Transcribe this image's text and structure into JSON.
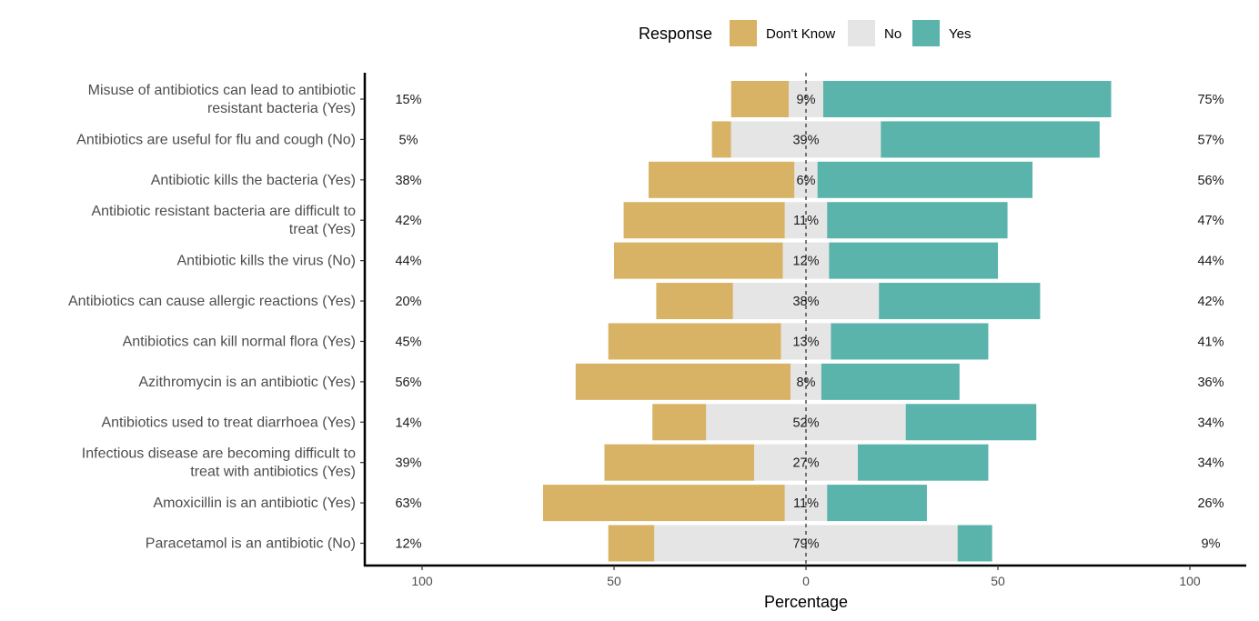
{
  "chart_data": {
    "type": "bar",
    "orientation": "horizontal",
    "stacking": "diverging",
    "xlabel": "Percentage",
    "xlim": [
      -100,
      100
    ],
    "x_ticks": [
      -100,
      -50,
      0,
      50,
      100
    ],
    "x_tick_labels": [
      "100",
      "50",
      "0",
      "50",
      "100"
    ],
    "grid": false,
    "legend": {
      "title": "Response",
      "position": "top",
      "entries": [
        "Don't Know",
        "No",
        "Yes"
      ]
    },
    "colors": {
      "Don't Know": "#d8b365",
      "No": "#e5e5e5",
      "Yes": "#5ab4ac"
    },
    "categories": [
      "Misuse of antibiotics can lead to antibiotic resistant bacteria (Yes)",
      "Antibiotics are useful for flu and cough (No)",
      "Antibiotic kills the bacteria (Yes)",
      "Antibiotic resistant bacteria are difficult to treat (Yes)",
      "Antibiotic kills the virus (No)",
      "Antibiotics can cause allergic reactions (Yes)",
      "Antibiotics can kill normal flora (Yes)",
      "Azithromycin is an antibiotic (Yes)",
      "Antibiotics used to treat diarrhoea (Yes)",
      "Infectious disease are becoming difficult to treat with antibiotics (Yes)",
      "Amoxicillin is an antibiotic (Yes)",
      "Paracetamol is an antibiotic (No)"
    ],
    "category_lines": [
      [
        "Misuse of antibiotics can lead to antibiotic",
        "resistant bacteria (Yes)"
      ],
      [
        "Antibiotics are useful for flu and cough (No)"
      ],
      [
        "Antibiotic kills the bacteria (Yes)"
      ],
      [
        "Antibiotic resistant bacteria are difficult to",
        "treat (Yes)"
      ],
      [
        "Antibiotic kills the virus (No)"
      ],
      [
        "Antibiotics can cause allergic reactions (Yes)"
      ],
      [
        "Antibiotics can kill normal flora (Yes)"
      ],
      [
        "Azithromycin is an antibiotic (Yes)"
      ],
      [
        "Antibiotics used to treat diarrhoea (Yes)"
      ],
      [
        "Infectious disease are becoming difficult to",
        "treat with antibiotics (Yes)"
      ],
      [
        "Amoxicillin is an antibiotic (Yes)"
      ],
      [
        "Paracetamol is an antibiotic (No)"
      ]
    ],
    "series": [
      {
        "name": "Don't Know",
        "values": [
          15,
          5,
          38,
          42,
          44,
          20,
          45,
          56,
          14,
          39,
          63,
          12
        ]
      },
      {
        "name": "No",
        "values": [
          9,
          39,
          6,
          11,
          12,
          38,
          13,
          8,
          52,
          27,
          11,
          79
        ]
      },
      {
        "name": "Yes",
        "values": [
          75,
          57,
          56,
          47,
          44,
          42,
          41,
          36,
          34,
          34,
          26,
          9
        ]
      }
    ],
    "left_labels": [
      "15%",
      "5%",
      "38%",
      "42%",
      "44%",
      "20%",
      "45%",
      "56%",
      "14%",
      "39%",
      "63%",
      "12%"
    ],
    "center_labels": [
      "9%",
      "39%",
      "6%",
      "11%",
      "12%",
      "38%",
      "13%",
      "8%",
      "52%",
      "27%",
      "11%",
      "79%"
    ],
    "right_labels": [
      "75%",
      "57%",
      "56%",
      "47%",
      "44%",
      "42%",
      "41%",
      "36%",
      "34%",
      "34%",
      "26%",
      "9%"
    ]
  }
}
